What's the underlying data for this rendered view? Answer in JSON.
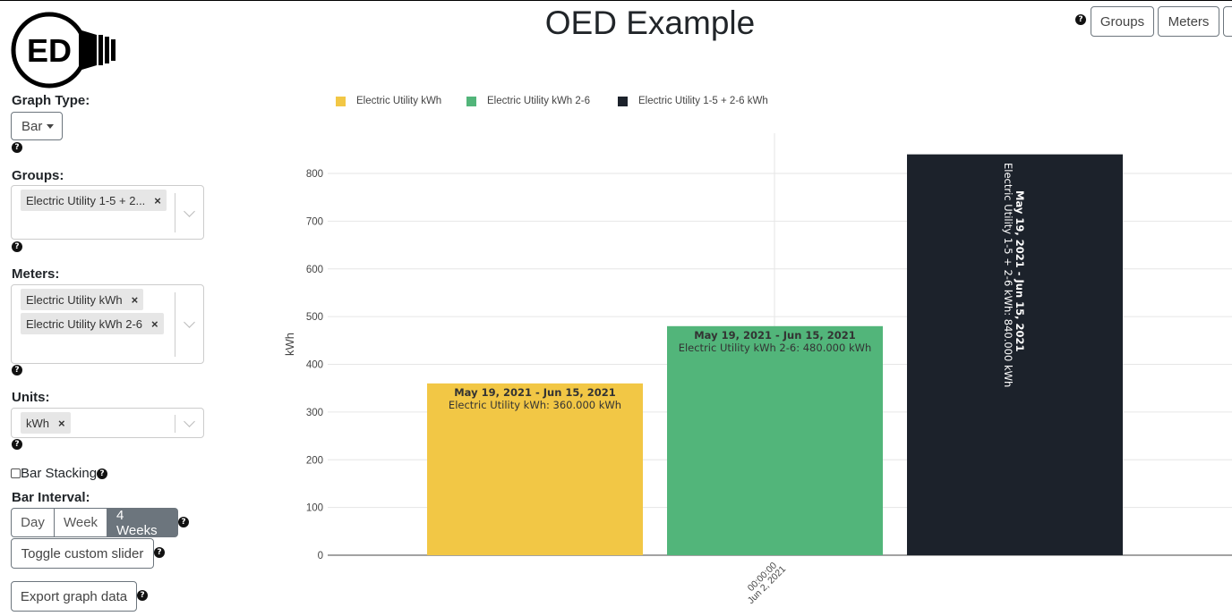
{
  "app": {
    "title": "OED Example",
    "logo_text": "ED"
  },
  "top_nav": {
    "groups_label": "Groups",
    "meters_label": "Meters"
  },
  "sidebar": {
    "graph_type_label": "Graph Type:",
    "graph_type_value": "Bar",
    "groups_label": "Groups:",
    "groups_selected": [
      "Electric Utility 1-5 + 2..."
    ],
    "meters_label": "Meters:",
    "meters_selected": [
      "Electric Utility kWh",
      "Electric Utility kWh 2-6"
    ],
    "units_label": "Units:",
    "units_selected": [
      "kWh"
    ],
    "bar_stacking_label": "Bar Stacking",
    "bar_stacking_checked": false,
    "bar_interval_label": "Bar Interval:",
    "bar_interval_options": [
      "Day",
      "Week",
      "4 Weeks"
    ],
    "bar_interval_selected": "4 Weeks",
    "toggle_slider_label": "Toggle custom slider",
    "export_label": "Export graph data",
    "help_glyph": "?",
    "remove_glyph": "×"
  },
  "chart_data": {
    "type": "bar",
    "ylabel": "kWh",
    "ylim": [
      0,
      880
    ],
    "yticks": [
      0,
      100,
      200,
      300,
      400,
      500,
      600,
      700,
      800
    ],
    "x_tick_label": [
      "00:00:00",
      "Jun 2, 2021"
    ],
    "series": [
      {
        "name": "Electric Utility kWh",
        "value": 360,
        "color": "#f2c745",
        "label_date": "May 19, 2021 - Jun 15, 2021",
        "label_value": "Electric Utility kWh: 360.000 kWh"
      },
      {
        "name": "Electric Utility kWh 2-6",
        "value": 480,
        "color": "#52b57a",
        "label_date": "May 19, 2021 - Jun 15, 2021",
        "label_value": "Electric Utility kWh 2-6: 480.000 kWh"
      },
      {
        "name": "Electric Utility 1-5 + 2-6 kWh",
        "value": 840,
        "color": "#1c222b",
        "label_date": "May 19, 2021 - Jun 15, 2021",
        "label_value": "Electric Utility 1-5 + 2-6 kWh: 840.000 kWh"
      }
    ],
    "grid": true,
    "legend_position": "top-left"
  }
}
